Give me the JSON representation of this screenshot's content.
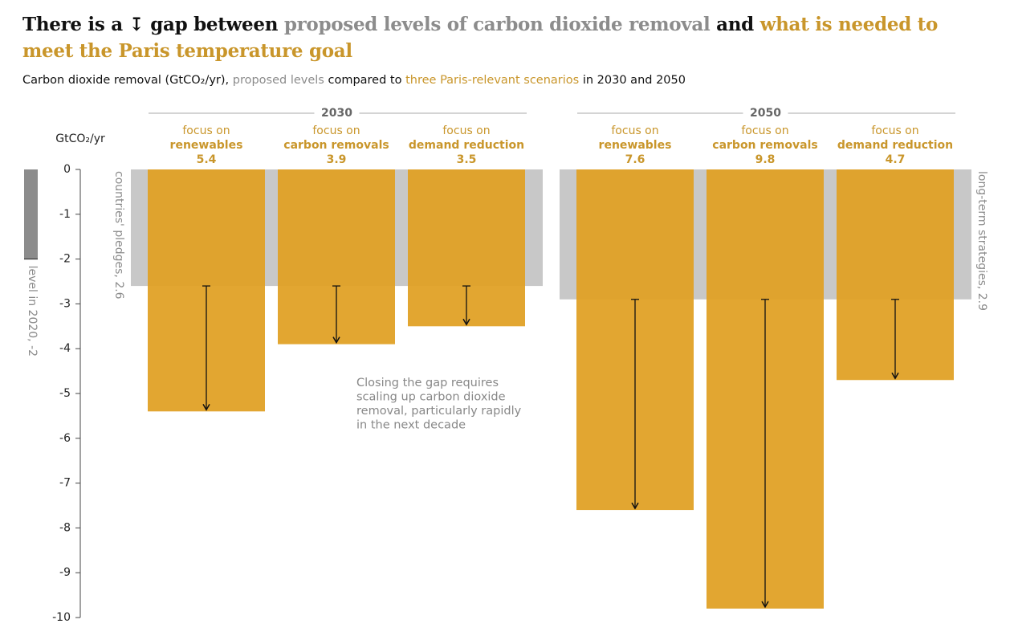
{
  "chart_data": {
    "type": "bar",
    "title_parts": [
      {
        "text": "There is a ↧ gap between ",
        "color": "#111111"
      },
      {
        "text": "proposed levels of carbon dioxide removal ",
        "color": "#8c8c8c"
      },
      {
        "text": "and ",
        "color": "#111111"
      },
      {
        "text": "what is needed to meet the Paris temperature goal",
        "color": "#c9962b"
      }
    ],
    "subtitle_parts": [
      {
        "text": "Carbon dioxide removal (GtCO₂/yr), ",
        "color": "#111111"
      },
      {
        "text": "proposed levels",
        "color": "#8c8c8c"
      },
      {
        "text": " compared to ",
        "color": "#111111"
      },
      {
        "text": "three Paris-relevant scenarios",
        "color": "#c9962b"
      },
      {
        "text": " in 2030 and 2050",
        "color": "#111111"
      }
    ],
    "y_label": "GtCO₂/yr",
    "ylim": [
      -10,
      0
    ],
    "yticks": [
      0,
      -1,
      -2,
      -3,
      -4,
      -5,
      -6,
      -7,
      -8,
      -9,
      -10
    ],
    "baseline_2020": {
      "value": -2,
      "label": "level in 2020, -2",
      "color": "#8c8c8c"
    },
    "bar_color": "#e0a126",
    "pledge_color": "#c8c8c8",
    "label_color": "#c9962b",
    "groups": [
      {
        "name": "2030",
        "pledge": {
          "value": -2.6,
          "label": "countries' pledges, 2.6"
        },
        "scenarios": [
          {
            "prefix": "focus on",
            "name": "renewables",
            "value": -5.4,
            "value_label": "5.4"
          },
          {
            "prefix": "focus on",
            "name": "carbon removals",
            "value": -3.9,
            "value_label": "3.9"
          },
          {
            "prefix": "focus on",
            "name": "demand reduction",
            "value": -3.5,
            "value_label": "3.5"
          }
        ]
      },
      {
        "name": "2050",
        "pledge": {
          "value": -2.9,
          "label": "long-term strategies, 2.9"
        },
        "scenarios": [
          {
            "prefix": "focus on",
            "name": "renewables",
            "value": -7.6,
            "value_label": "7.6"
          },
          {
            "prefix": "focus on",
            "name": "carbon removals",
            "value": -9.8,
            "value_label": "9.8"
          },
          {
            "prefix": "focus on",
            "name": "demand reduction",
            "value": -4.7,
            "value_label": "4.7"
          }
        ]
      }
    ],
    "annotation": [
      "Closing the gap requires",
      "scaling up carbon dioxide",
      "removal, particularly rapidly",
      "in the next decade"
    ]
  }
}
